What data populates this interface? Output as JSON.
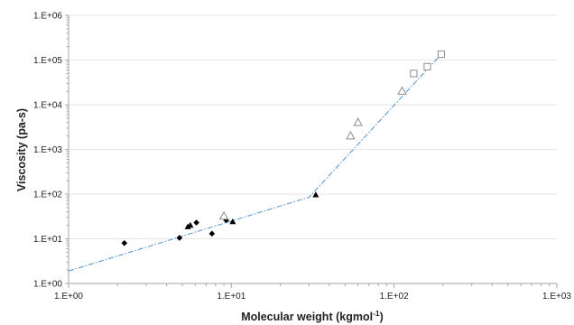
{
  "chart_data": {
    "type": "scatter",
    "title": "",
    "xlabel": "Molecular weight (kgmol",
    "xlabel_sup": "-1",
    "xlabel_end": ")",
    "ylabel": "Viscosity  (pa-s)",
    "xscale": "log",
    "yscale": "log",
    "xlim": [
      1,
      1000
    ],
    "ylim": [
      1,
      1000000
    ],
    "grid": "horizontal major gridlines",
    "legend": "none",
    "x_tick_values": [
      1,
      10,
      100,
      1000
    ],
    "x_tick_labels": [
      "1.E+00",
      "1.E+01",
      "1.E+02",
      "1.E+03"
    ],
    "y_tick_values": [
      1,
      10,
      100,
      1000,
      10000,
      100000,
      1000000
    ],
    "y_tick_labels": [
      "1.E+00",
      "1.E+01",
      "1.E+02",
      "1.E+03",
      "1.E+04",
      "1.E+05",
      "1.E+06"
    ],
    "colors": {
      "axis": "#a6a6a6",
      "grid": "#e6e6e6",
      "marker": "#000000",
      "open_marker": "#8c8c8c",
      "trend": "#5b9bd5"
    },
    "series": [
      {
        "marker": "filled-diamond",
        "points": [
          [
            2.2,
            8.0
          ],
          [
            4.8,
            10.5
          ],
          [
            6.1,
            23.0
          ],
          [
            7.6,
            13.0
          ],
          [
            9.3,
            26.0
          ]
        ]
      },
      {
        "marker": "filled-triangle",
        "points": [
          [
            5.4,
            18.5
          ],
          [
            5.6,
            20.0
          ],
          [
            10.2,
            24.0
          ],
          [
            33.0,
            96.0
          ]
        ]
      },
      {
        "marker": "open-triangle",
        "points": [
          [
            9.0,
            32.0
          ],
          [
            54.0,
            2000.0
          ],
          [
            60.0,
            4000.0
          ],
          [
            112.0,
            20000.0
          ]
        ]
      },
      {
        "marker": "open-square",
        "points": [
          [
            132.0,
            50000.0
          ],
          [
            160.0,
            71000.0
          ],
          [
            195.0,
            135000.0
          ]
        ]
      }
    ],
    "trend_line": {
      "style": "dash-dot",
      "points": [
        [
          1.0,
          1.9
        ],
        [
          30.0,
          85.0
        ],
        [
          195.0,
          135000.0
        ]
      ]
    }
  }
}
